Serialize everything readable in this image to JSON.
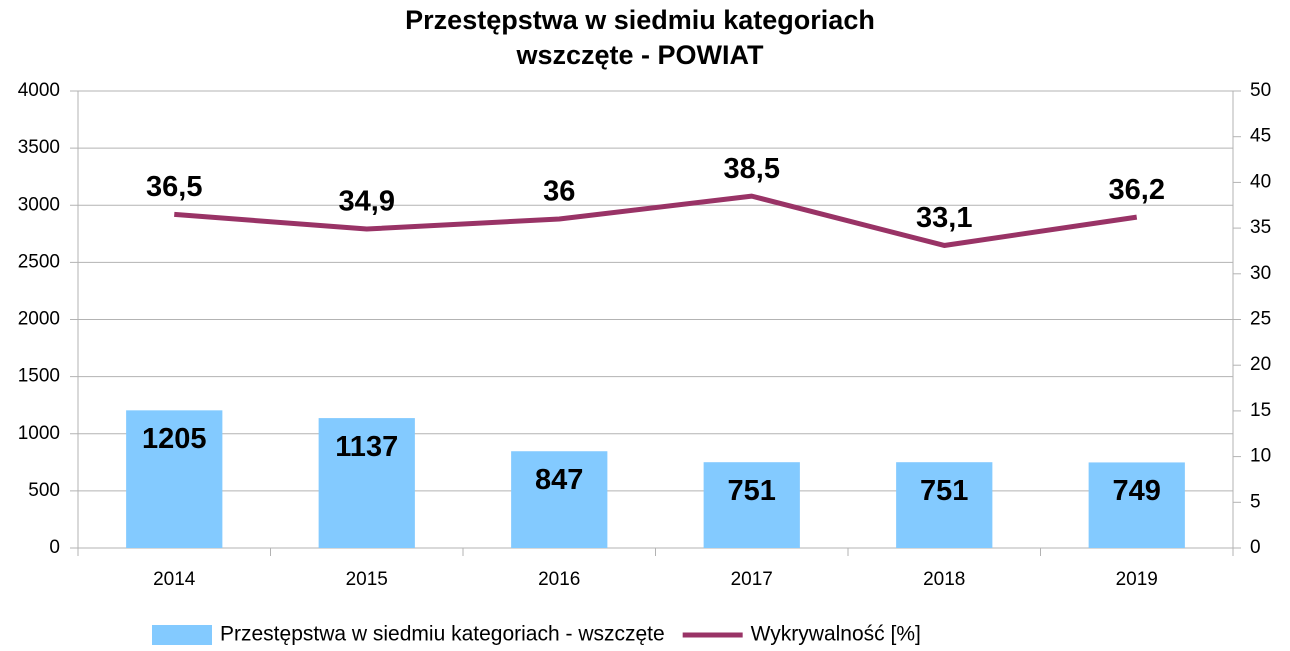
{
  "chart_data": {
    "type": "bar",
    "title": [
      "Przestępstwa w siedmiu kategoriach",
      "wszczęte - POWIAT"
    ],
    "categories": [
      "2014",
      "2015",
      "2016",
      "2017",
      "2018",
      "2019"
    ],
    "series": [
      {
        "name": "Przestępstwa w siedmiu kategoriach - wszczęte",
        "type": "bar",
        "color": "#83caff",
        "values": [
          1205,
          1137,
          847,
          751,
          751,
          749
        ]
      },
      {
        "name": "Wykrywalność [%]",
        "type": "line",
        "axis": "y2",
        "color": "#993366",
        "values": [
          36.5,
          34.9,
          36,
          38.5,
          33.1,
          36.2
        ],
        "value_labels": [
          "36,5",
          "34,9",
          "36",
          "38,5",
          "33,1",
          "36,2"
        ]
      }
    ],
    "ylim": [
      0,
      4000
    ],
    "yticks": [
      0,
      500,
      1000,
      1500,
      2000,
      2500,
      3000,
      3500,
      4000
    ],
    "y2lim": [
      0,
      50
    ],
    "y2ticks": [
      0,
      5,
      10,
      15,
      20,
      25,
      30,
      35,
      40,
      45,
      50
    ],
    "grid": true,
    "legend": "bottom"
  }
}
